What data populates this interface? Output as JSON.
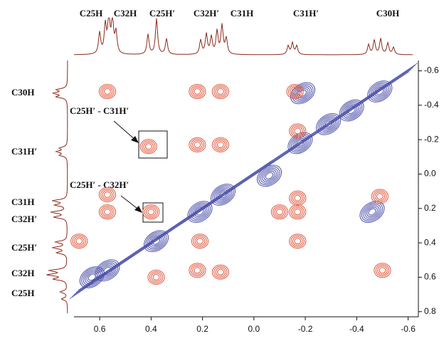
{
  "chart_data": {
    "type": "scatter",
    "xlim": [
      0.7,
      -0.64
    ],
    "ylim": [
      -0.66,
      0.83
    ],
    "xticks": [
      0.6,
      0.4,
      0.2,
      {
        "value": 0,
        "label": "0.0"
      },
      -0.2,
      -0.4,
      -0.6
    ],
    "yticks": [
      -0.6,
      -0.4,
      -0.2,
      {
        "value": 0,
        "label": "0.0"
      },
      0.2,
      0.4,
      0.6,
      0.8
    ],
    "series": [
      {
        "color": "#4a4ea8",
        "x": [
          0.63,
          0.57,
          0.38,
          0.21,
          0.12,
          -0.06,
          -0.18,
          -0.29,
          -0.38,
          -0.49,
          -0.19,
          -0.46
        ],
        "values": [
          0.6,
          0.56,
          0.39,
          0.22,
          0.12,
          0.01,
          -0.18,
          -0.29,
          -0.37,
          -0.48,
          -0.47,
          0.22
        ]
      },
      {
        "color": "#e0553a",
        "x": [
          0.57,
          0.22,
          0.13,
          -0.16,
          0.41,
          0.22,
          0.13,
          -0.17,
          0.57,
          0.57,
          -0.17,
          -0.17,
          -0.1,
          0.4,
          -0.49,
          0.68,
          -0.17,
          0.21,
          0.38,
          0.22,
          0.13,
          -0.5
        ],
        "values": [
          -0.48,
          -0.48,
          -0.48,
          -0.48,
          -0.16,
          -0.17,
          -0.17,
          -0.25,
          0.12,
          0.22,
          0.14,
          0.22,
          0.22,
          0.22,
          0.13,
          0.39,
          0.39,
          0.39,
          0.6,
          0.56,
          0.57,
          0.56
        ]
      }
    ],
    "top_labels": [
      "C25H",
      "C32H",
      "C25H′",
      "C32H′",
      "C31H",
      "C31H′",
      "C30H"
    ],
    "left_labels": [
      "C30H",
      "C31H′",
      "C31H",
      "C32H′",
      "C25H′",
      "C32H",
      "C25H"
    ],
    "annotations": [
      "C25H′ - C31H′",
      "C25H′ - C32H′"
    ]
  }
}
